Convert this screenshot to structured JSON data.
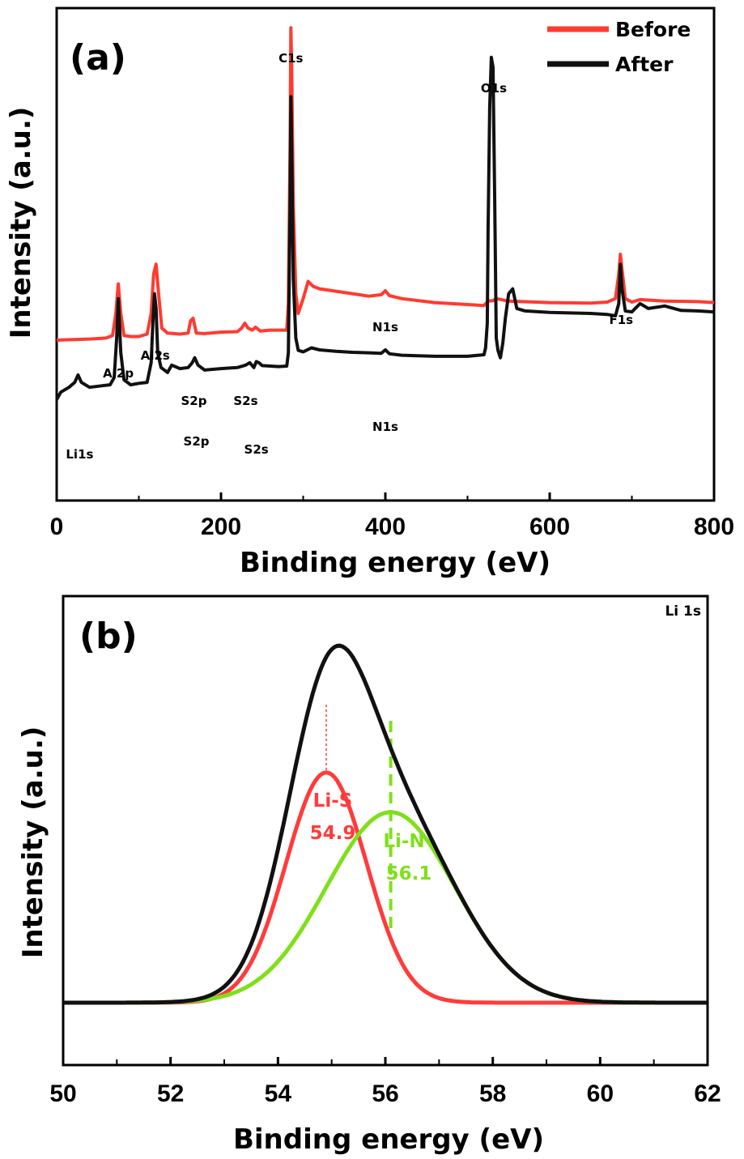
{
  "chart_data": [
    {
      "type": "line",
      "panel_label": "(a)",
      "xlabel": "Binding energy (eV)",
      "ylabel": "Intensity (a.u.)",
      "xlim": [
        0,
        800
      ],
      "xticks": [
        "0",
        "200",
        "400",
        "600",
        "800"
      ],
      "legend": {
        "position": "top-right"
      },
      "series": [
        {
          "name": "Before",
          "color": "#ff3b30",
          "x": [
            0,
            5,
            40,
            60,
            68,
            72,
            75,
            78,
            82,
            90,
            100,
            110,
            115,
            118,
            121,
            124,
            128,
            135,
            150,
            160,
            163,
            166,
            170,
            180,
            200,
            220,
            225,
            229,
            233,
            238,
            242,
            248,
            260,
            280,
            282,
            284,
            285,
            286,
            288,
            291,
            294,
            300,
            306,
            312,
            320,
            340,
            360,
            380,
            395,
            400,
            405,
            420,
            460,
            500,
            520,
            525,
            531,
            535,
            550,
            600,
            650,
            670,
            680,
            684,
            686,
            688,
            692,
            700,
            710,
            740,
            780,
            800
          ],
          "y": [
            32.5,
            32.6,
            32.8,
            33,
            33.5,
            38,
            44,
            38,
            33.5,
            33.3,
            33.3,
            33.8,
            38,
            46,
            48,
            42,
            35,
            34,
            33.8,
            34,
            36.5,
            37,
            34,
            33.9,
            34.2,
            34.3,
            35,
            36,
            35,
            34.6,
            35.2,
            34.4,
            34.6,
            34.6,
            40,
            72,
            96,
            88,
            60,
            42,
            38,
            41,
            44.5,
            43.5,
            43,
            42.5,
            42,
            41.5,
            41.8,
            42.6,
            41.6,
            41,
            40.2,
            39.8,
            39.6,
            40.5,
            40.6,
            41,
            40.5,
            40.2,
            40.1,
            40.3,
            41,
            46,
            50,
            47,
            41,
            40.3,
            40.8,
            40.5,
            40.4,
            40.2
          ]
        },
        {
          "name": "After",
          "color": "#111111",
          "x": [
            0,
            5,
            15,
            22,
            26,
            30,
            40,
            55,
            65,
            70,
            73,
            75,
            78,
            82,
            90,
            100,
            110,
            115,
            117,
            119,
            121,
            123,
            127,
            135,
            140,
            150,
            160,
            165,
            168,
            172,
            180,
            200,
            220,
            230,
            235,
            240,
            243,
            246,
            250,
            270,
            280,
            282,
            284,
            285,
            286,
            288,
            291,
            294,
            300,
            310,
            320,
            340,
            360,
            380,
            395,
            400,
            405,
            420,
            460,
            500,
            520,
            522,
            524,
            525,
            527,
            529,
            531,
            533,
            535,
            537,
            540,
            543,
            546,
            550,
            555,
            560,
            570,
            600,
            650,
            670,
            680,
            684,
            686,
            688,
            692,
            700,
            710,
            720,
            740,
            760,
            780,
            800
          ],
          "y": [
            20.5,
            22,
            23,
            24,
            25.5,
            24,
            23,
            23.3,
            23.5,
            25,
            33,
            41,
            30,
            24.5,
            23.5,
            23.8,
            24,
            28,
            36,
            42,
            39,
            30,
            27,
            26,
            27.5,
            26.8,
            27,
            28,
            29,
            27.5,
            26.5,
            26.8,
            27,
            27.5,
            28,
            27,
            28.2,
            28,
            27.4,
            27.2,
            27.3,
            30,
            60,
            82,
            72,
            45,
            33,
            30.5,
            30.2,
            31,
            30.6,
            30.3,
            30.1,
            30,
            29.9,
            30.6,
            29.8,
            29.5,
            29.3,
            29.3,
            29.6,
            31,
            36,
            55,
            80,
            90,
            88,
            62,
            33,
            30.5,
            29,
            32,
            37,
            42,
            43,
            39,
            38.5,
            38.2,
            38,
            37.8,
            37.5,
            40,
            48,
            43,
            38.5,
            38.3,
            40,
            39,
            39.5,
            38.6,
            38.5,
            38.3
          ]
        }
      ],
      "annotations": [
        "Li1s",
        "Al2p",
        "Al2s",
        "S2p",
        "S2s",
        "C1s",
        "N1s",
        "O1s",
        "F1s",
        "S2p",
        "S2s",
        "N1s"
      ]
    },
    {
      "type": "line",
      "panel_label": "(b)",
      "corner_label": "Li 1s",
      "xlabel": "Binding energy (eV)",
      "ylabel": "Intensity (a.u.)",
      "xlim": [
        50,
        62
      ],
      "xticks": [
        "50",
        "52",
        "54",
        "56",
        "58",
        "60",
        "62"
      ],
      "series": [
        {
          "name": "Li-S",
          "color": "#ff3b3b",
          "center": 54.9,
          "amplitude": 0.58,
          "sigma": 0.75
        },
        {
          "name": "Li-N",
          "color": "#7fe01a",
          "center": 56.1,
          "amplitude": 0.48,
          "sigma": 1.2
        },
        {
          "name": "",
          "color": "#111111",
          "type": "envelope"
        }
      ],
      "component_labels": [
        {
          "name": "Li-S",
          "value": "54.9",
          "color": "#ff3b3b"
        },
        {
          "name": "Li-N",
          "value": "56.1",
          "color": "#7fe01a"
        }
      ]
    }
  ]
}
